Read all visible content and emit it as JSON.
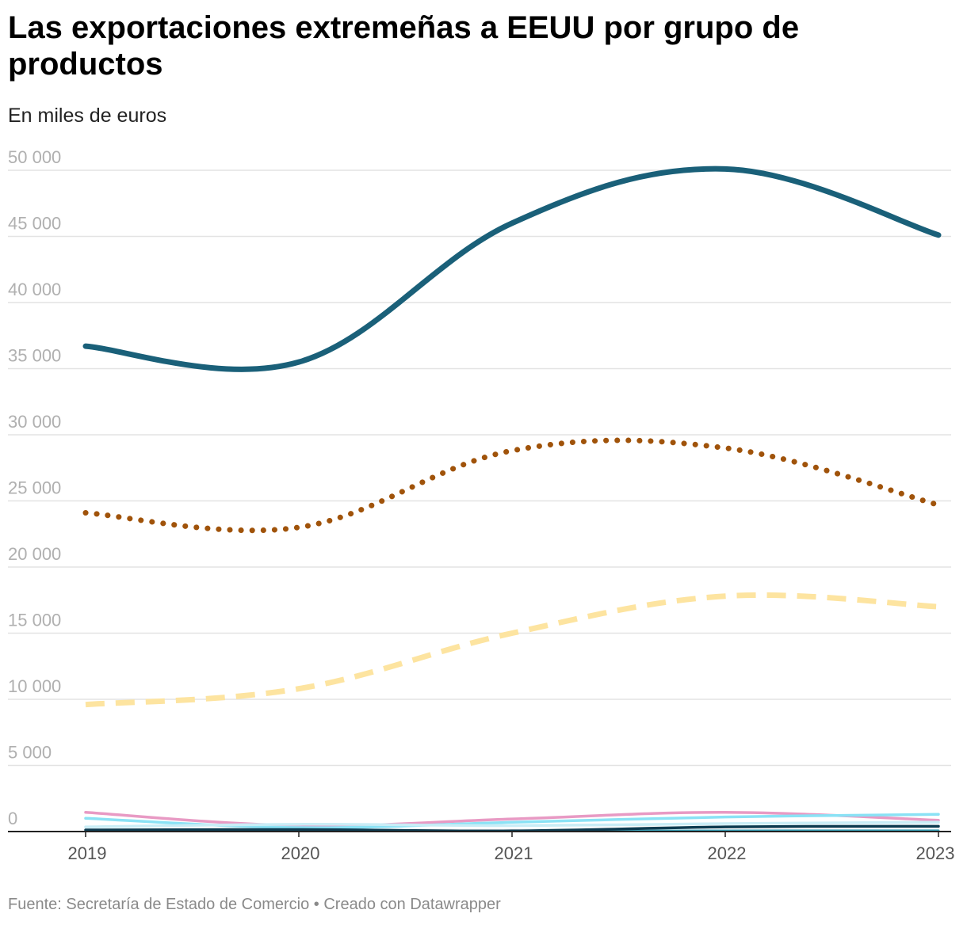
{
  "header": {
    "title": "Las exportaciones extremeñas a EEUU por grupo de productos",
    "subtitle": "En miles de euros"
  },
  "footer": {
    "source_label": "Fuente:",
    "source": "Secretaría de Estado de Comercio",
    "separator": "•",
    "credit": "Creado con Datawrapper"
  },
  "chart_data": {
    "type": "line",
    "title": "Las exportaciones extremeñas a EEUU por grupo de productos",
    "subtitle": "En miles de euros",
    "xlabel": "",
    "ylabel": "",
    "x": [
      "2019",
      "2020",
      "2021",
      "2022",
      "2023"
    ],
    "ylim": [
      0,
      50000
    ],
    "yticks": [
      0,
      5000,
      10000,
      15000,
      20000,
      25000,
      30000,
      35000,
      40000,
      45000,
      50000
    ],
    "ytick_labels": [
      "0",
      "5 000",
      "10 000",
      "15 000",
      "20 000",
      "25 000",
      "30 000",
      "35 000",
      "40 000",
      "45 000",
      "50 000"
    ],
    "grid": true,
    "legend": "none",
    "series": [
      {
        "values": [
          36700,
          35500,
          46000,
          50100,
          45100
        ],
        "color": "#1a6079",
        "style": "solid",
        "width": 7
      },
      {
        "values": [
          24100,
          23000,
          28800,
          29000,
          24700
        ],
        "color": "#a0530a",
        "style": "dotted",
        "width": 7
      },
      {
        "values": [
          9600,
          10800,
          15000,
          17800,
          17000
        ],
        "color": "#fde4a0",
        "style": "dashed",
        "width": 7
      },
      {
        "values": [
          1450,
          450,
          950,
          1450,
          850
        ],
        "color": "#e89ac4",
        "style": "solid",
        "width": 3.5
      },
      {
        "values": [
          1000,
          300,
          700,
          1100,
          1300
        ],
        "color": "#8ae2f5",
        "style": "solid",
        "width": 3.5
      },
      {
        "values": [
          350,
          550,
          450,
          600,
          700
        ],
        "color": "#c9edf6",
        "style": "solid",
        "width": 3.5
      },
      {
        "values": [
          120,
          150,
          50,
          350,
          400
        ],
        "color": "#0d3b50",
        "style": "solid",
        "width": 3.5
      },
      {
        "values": [
          50,
          40,
          30,
          60,
          70
        ],
        "color": "#3aa1b8",
        "style": "solid",
        "width": 3
      }
    ]
  }
}
